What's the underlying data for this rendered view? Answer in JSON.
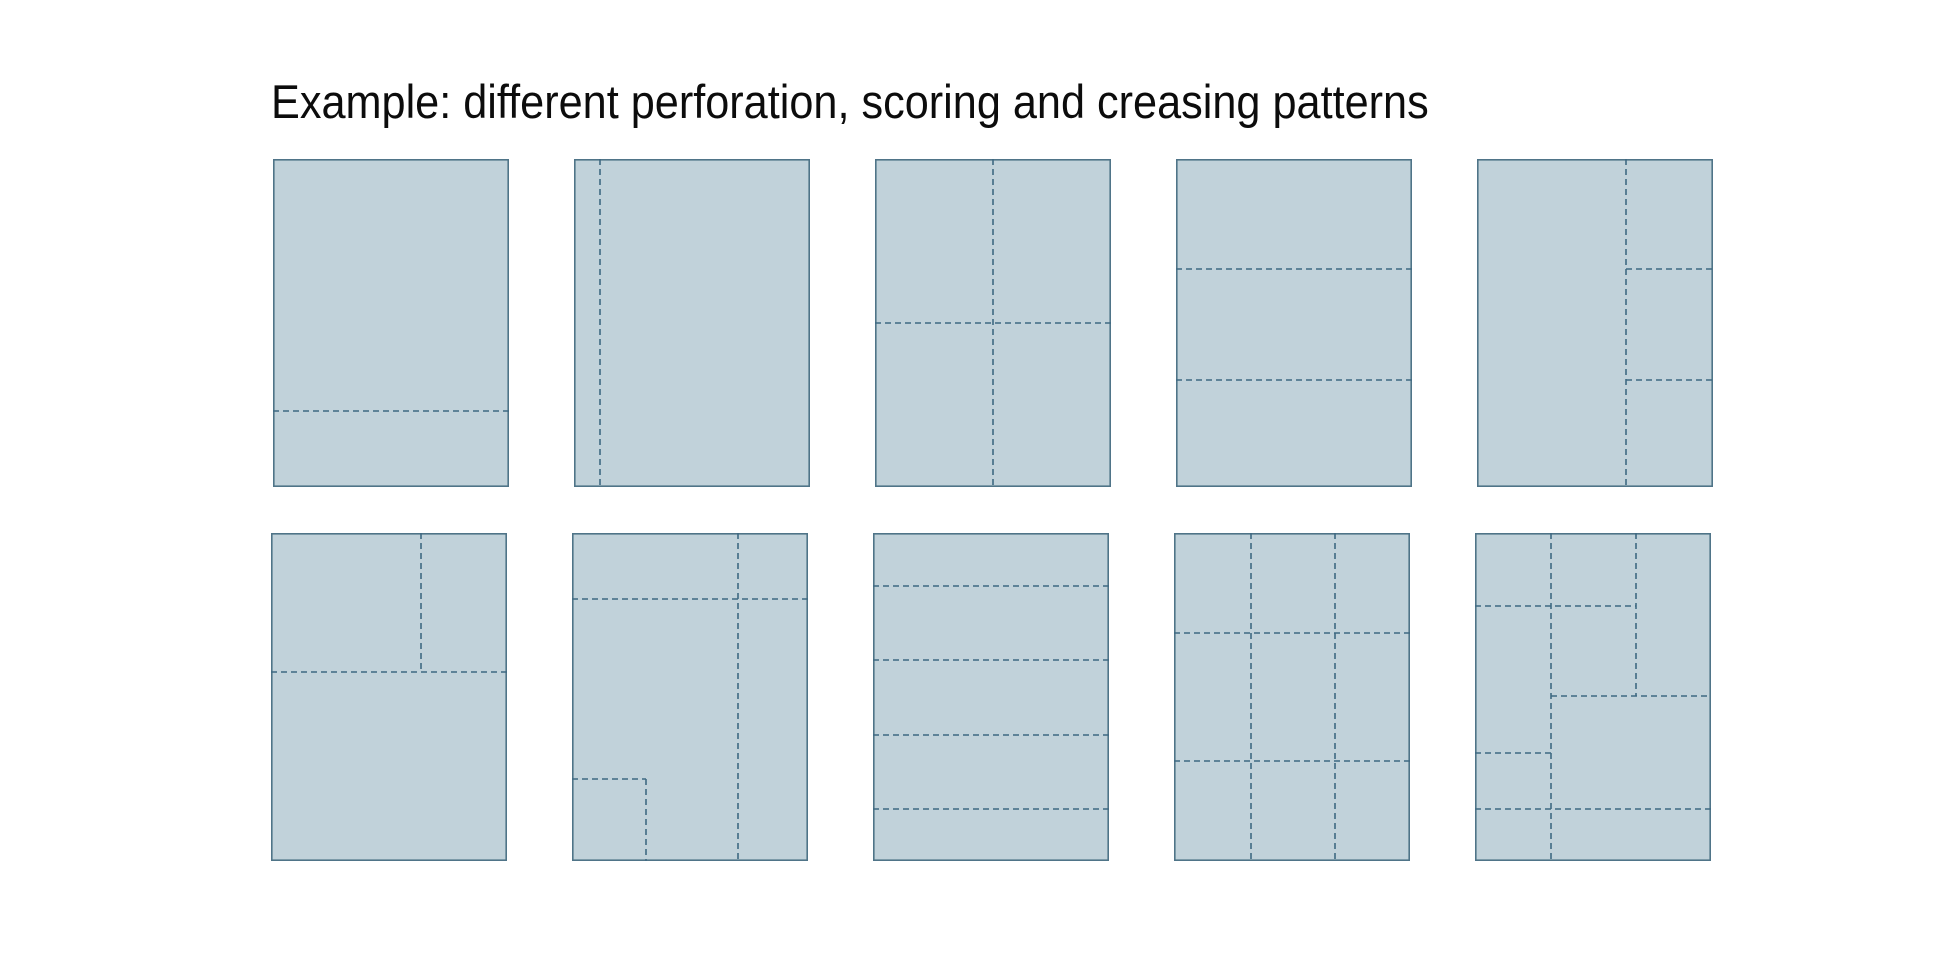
{
  "title": "Example: different perforation, scoring and creasing patterns",
  "colors": {
    "sheet_fill": "#c1d2da",
    "sheet_border": "#4f7488",
    "line": "#3e6982",
    "title_text": "#0c0c0c"
  },
  "sheet_size": {
    "width": 236,
    "height": 328
  },
  "sheets": [
    {
      "name": "pattern-1",
      "lines": [
        [
          0,
          252,
          236,
          252
        ]
      ]
    },
    {
      "name": "pattern-2",
      "lines": [
        [
          26,
          0,
          26,
          328
        ]
      ]
    },
    {
      "name": "pattern-3",
      "lines": [
        [
          118,
          0,
          118,
          328
        ],
        [
          0,
          164,
          236,
          164
        ]
      ]
    },
    {
      "name": "pattern-4",
      "lines": [
        [
          0,
          110,
          236,
          110
        ],
        [
          0,
          221,
          236,
          221
        ]
      ]
    },
    {
      "name": "pattern-5",
      "lines": [
        [
          149,
          0,
          149,
          328
        ],
        [
          149,
          110,
          236,
          110
        ],
        [
          149,
          221,
          236,
          221
        ]
      ]
    },
    {
      "name": "pattern-6",
      "lines": [
        [
          150,
          0,
          150,
          139
        ],
        [
          0,
          139,
          236,
          139
        ]
      ]
    },
    {
      "name": "pattern-7",
      "lines": [
        [
          0,
          66,
          236,
          66
        ],
        [
          166,
          0,
          166,
          328
        ],
        [
          0,
          246,
          74,
          246
        ],
        [
          74,
          246,
          74,
          328
        ]
      ]
    },
    {
      "name": "pattern-8",
      "lines": [
        [
          0,
          53,
          236,
          53
        ],
        [
          0,
          127,
          236,
          127
        ],
        [
          0,
          202,
          236,
          202
        ],
        [
          0,
          276,
          236,
          276
        ]
      ]
    },
    {
      "name": "pattern-9",
      "lines": [
        [
          77,
          0,
          77,
          328
        ],
        [
          161,
          0,
          161,
          328
        ],
        [
          0,
          100,
          236,
          100
        ],
        [
          0,
          228,
          236,
          228
        ]
      ]
    },
    {
      "name": "pattern-10",
      "lines": [
        [
          76,
          0,
          76,
          328
        ],
        [
          161,
          0,
          161,
          163
        ],
        [
          0,
          73,
          161,
          73
        ],
        [
          76,
          163,
          236,
          163
        ],
        [
          0,
          220,
          76,
          220
        ],
        [
          0,
          276,
          236,
          276
        ]
      ]
    }
  ]
}
